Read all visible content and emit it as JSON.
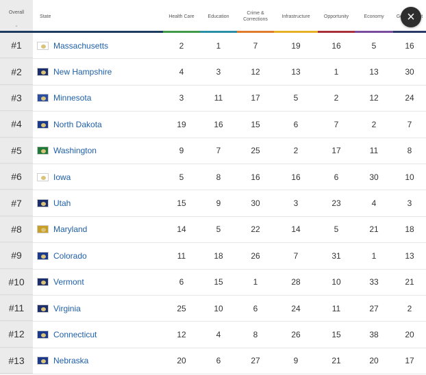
{
  "columns": [
    {
      "label": "Overall",
      "color": "#1d3a5f"
    },
    {
      "label": "State",
      "color": "#1d3a5f"
    },
    {
      "label": "Health Care",
      "color": "#3f9b49"
    },
    {
      "label": "Education",
      "color": "#2a8fa6"
    },
    {
      "label": "Crime & Corrections",
      "color": "#e07b2c"
    },
    {
      "label": "Infrastructure",
      "color": "#e8b028"
    },
    {
      "label": "Opportunity",
      "color": "#a8303a"
    },
    {
      "label": "Economy",
      "color": "#7a4a9c"
    },
    {
      "label": "Government",
      "color": "#2a3a66"
    }
  ],
  "sort_indicator": "⌄",
  "close_label": "×",
  "rows": [
    {
      "rank": "#1",
      "state": "Massachusetts",
      "flag": "#ffffff",
      "values": [
        "2",
        "1",
        "7",
        "19",
        "16",
        "5",
        "16"
      ]
    },
    {
      "rank": "#2",
      "state": "New Hampshire",
      "flag": "#1c2f6b",
      "values": [
        "4",
        "3",
        "12",
        "13",
        "1",
        "13",
        "30"
      ]
    },
    {
      "rank": "#3",
      "state": "Minnesota",
      "flag": "#2b4ea0",
      "values": [
        "3",
        "11",
        "17",
        "5",
        "2",
        "12",
        "24"
      ]
    },
    {
      "rank": "#4",
      "state": "North Dakota",
      "flag": "#1a3a8a",
      "values": [
        "19",
        "16",
        "15",
        "6",
        "7",
        "2",
        "7"
      ]
    },
    {
      "rank": "#5",
      "state": "Washington",
      "flag": "#1f7a3a",
      "values": [
        "9",
        "7",
        "25",
        "2",
        "17",
        "11",
        "8"
      ]
    },
    {
      "rank": "#6",
      "state": "Iowa",
      "flag": "#ffffff",
      "values": [
        "5",
        "8",
        "16",
        "16",
        "6",
        "30",
        "10"
      ]
    },
    {
      "rank": "#7",
      "state": "Utah",
      "flag": "#1c2f6b",
      "values": [
        "15",
        "9",
        "30",
        "3",
        "23",
        "4",
        "3"
      ]
    },
    {
      "rank": "#8",
      "state": "Maryland",
      "flag": "#c8a028",
      "values": [
        "14",
        "5",
        "22",
        "14",
        "5",
        "21",
        "18"
      ]
    },
    {
      "rank": "#9",
      "state": "Colorado",
      "flag": "#1c3a8c",
      "values": [
        "11",
        "18",
        "26",
        "7",
        "31",
        "1",
        "13"
      ]
    },
    {
      "rank": "#10",
      "state": "Vermont",
      "flag": "#1c2f6b",
      "values": [
        "6",
        "15",
        "1",
        "28",
        "10",
        "33",
        "21"
      ]
    },
    {
      "rank": "#11",
      "state": "Virginia",
      "flag": "#1c2f6b",
      "values": [
        "25",
        "10",
        "6",
        "24",
        "11",
        "27",
        "2"
      ]
    },
    {
      "rank": "#12",
      "state": "Connecticut",
      "flag": "#1c3a8c",
      "values": [
        "12",
        "4",
        "8",
        "26",
        "15",
        "38",
        "20"
      ]
    },
    {
      "rank": "#13",
      "state": "Nebraska",
      "flag": "#1c3a8c",
      "values": [
        "20",
        "6",
        "27",
        "9",
        "21",
        "20",
        "17"
      ]
    }
  ]
}
